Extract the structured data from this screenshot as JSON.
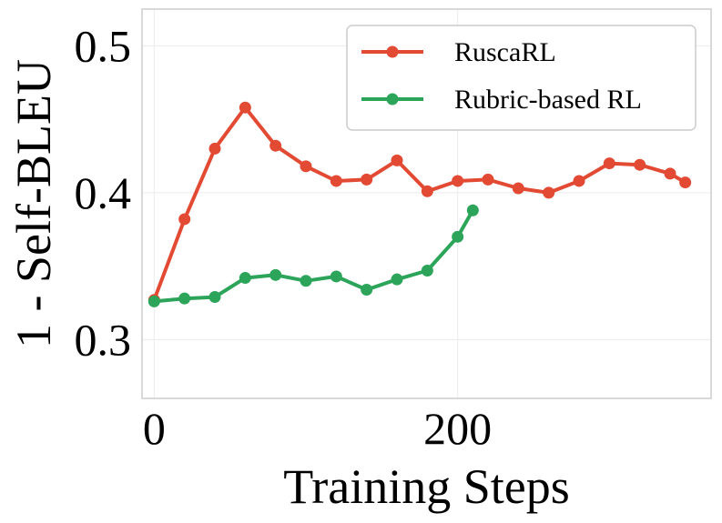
{
  "chart_data": {
    "type": "line",
    "xlabel": "Training Steps",
    "ylabel": "1 - Self-BLEU",
    "xlim": [
      -8,
      367
    ],
    "ylim": [
      0.26,
      0.525
    ],
    "xticks": [
      0,
      200
    ],
    "xtick_labels": [
      "0",
      "200"
    ],
    "yticks": [
      0.3,
      0.4,
      0.5
    ],
    "ytick_labels": [
      "0.3",
      "0.4",
      "0.5"
    ],
    "grid": true,
    "legend_position": "top-right",
    "series": [
      {
        "name": "RuscaRL",
        "color": "#e34a33",
        "x": [
          0,
          20,
          40,
          60,
          80,
          100,
          120,
          140,
          160,
          180,
          200,
          220,
          240,
          260,
          280,
          300,
          320,
          340,
          350
        ],
        "y": [
          0.327,
          0.382,
          0.43,
          0.458,
          0.432,
          0.418,
          0.408,
          0.409,
          0.422,
          0.401,
          0.408,
          0.409,
          0.403,
          0.4,
          0.408,
          0.42,
          0.419,
          0.413,
          0.407
        ]
      },
      {
        "name": "Rubric-based RL",
        "color": "#2ca55a",
        "x": [
          0,
          20,
          40,
          60,
          80,
          100,
          120,
          140,
          160,
          180,
          200,
          210
        ],
        "y": [
          0.326,
          0.328,
          0.329,
          0.342,
          0.344,
          0.34,
          0.343,
          0.334,
          0.341,
          0.347,
          0.37,
          0.388
        ]
      }
    ]
  }
}
